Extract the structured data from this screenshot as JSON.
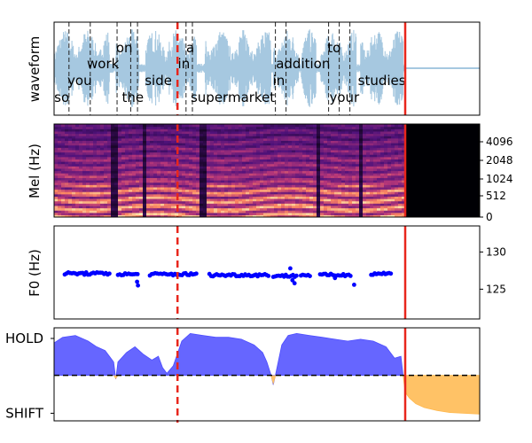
{
  "chart_data": [
    {
      "type": "area",
      "panel": "waveform",
      "ylabel": "waveform",
      "xlim": [
        0,
        1
      ],
      "audio_end": 0.825,
      "marker": 0.29,
      "word_boundaries": [
        0.035,
        0.085,
        0.148,
        0.18,
        0.196,
        0.31,
        0.325,
        0.52,
        0.545,
        0.645,
        0.67,
        0.695
      ],
      "waveform_color": "#a6c8e0",
      "words": [
        {
          "text": "so",
          "x": 0.018,
          "row": "bottom"
        },
        {
          "text": "you",
          "x": 0.06,
          "row": "middle"
        },
        {
          "text": "work",
          "x": 0.115,
          "row": "upper"
        },
        {
          "text": "on",
          "x": 0.165,
          "row": "top"
        },
        {
          "text": "the",
          "x": 0.185,
          "row": "bottom"
        },
        {
          "text": "side",
          "x": 0.245,
          "row": "middle"
        },
        {
          "text": "in",
          "x": 0.305,
          "row": "upper"
        },
        {
          "text": "a",
          "x": 0.32,
          "row": "top"
        },
        {
          "text": "supermarket",
          "x": 0.42,
          "row": "bottom"
        },
        {
          "text": "in",
          "x": 0.528,
          "row": "middle"
        },
        {
          "text": "addition",
          "x": 0.585,
          "row": "upper"
        },
        {
          "text": "to",
          "x": 0.658,
          "row": "top"
        },
        {
          "text": "your",
          "x": 0.682,
          "row": "bottom"
        },
        {
          "text": "studies",
          "x": 0.77,
          "row": "middle"
        }
      ]
    },
    {
      "type": "heatmap",
      "panel": "mel",
      "ylabel": "Mel (Hz)",
      "yticks": [
        "0",
        "512",
        "1024",
        "2048",
        "4096"
      ],
      "audio_end": 0.825,
      "marker": 0.29,
      "colormap": "magma"
    },
    {
      "type": "scatter",
      "panel": "f0",
      "ylabel": "F0 (Hz)",
      "yticks": [
        125,
        130
      ],
      "ylim": [
        121,
        133.5
      ],
      "marker": 0.29,
      "audio_end": 0.825,
      "point_color": "#0000ff",
      "segments": [
        {
          "x0": 0.025,
          "x1": 0.13,
          "y": 127.1
        },
        {
          "x0": 0.15,
          "x1": 0.2,
          "y": 127.0
        },
        {
          "x0": 0.225,
          "x1": 0.335,
          "y": 127.0
        },
        {
          "x0": 0.365,
          "x1": 0.505,
          "y": 126.9
        },
        {
          "x0": 0.515,
          "x1": 0.57,
          "y": 126.8
        },
        {
          "x0": 0.58,
          "x1": 0.605,
          "y": 126.9
        },
        {
          "x0": 0.625,
          "x1": 0.7,
          "y": 126.9
        },
        {
          "x0": 0.745,
          "x1": 0.795,
          "y": 127.1
        }
      ],
      "outliers": [
        {
          "x": 0.195,
          "y": 126.0
        },
        {
          "x": 0.197,
          "y": 125.5
        },
        {
          "x": 0.555,
          "y": 127.8
        },
        {
          "x": 0.56,
          "y": 126.2
        },
        {
          "x": 0.565,
          "y": 125.8
        },
        {
          "x": 0.705,
          "y": 125.6
        },
        {
          "x": 0.66,
          "y": 126.5
        }
      ]
    },
    {
      "type": "area",
      "panel": "turn",
      "ytick_labels": [
        "HOLD",
        "SHIFT"
      ],
      "ylim": [
        -1.2,
        1.25
      ],
      "marker": 0.29,
      "audio_end": 0.825,
      "hold_color": "#6666ff",
      "shift_color": "#ffc266",
      "hold": [
        [
          0,
          0.85
        ],
        [
          0.02,
          1.0
        ],
        [
          0.05,
          1.05
        ],
        [
          0.08,
          0.9
        ],
        [
          0.1,
          0.75
        ],
        [
          0.12,
          0.65
        ],
        [
          0.14,
          0.35
        ],
        [
          0.145,
          -0.1
        ],
        [
          0.15,
          0.35
        ],
        [
          0.17,
          0.6
        ],
        [
          0.19,
          0.75
        ],
        [
          0.21,
          0.55
        ],
        [
          0.23,
          0.4
        ],
        [
          0.245,
          0.5
        ],
        [
          0.255,
          0.2
        ],
        [
          0.265,
          0.05
        ],
        [
          0.28,
          0.25
        ],
        [
          0.3,
          0.9
        ],
        [
          0.32,
          1.1
        ],
        [
          0.35,
          1.05
        ],
        [
          0.38,
          1.0
        ],
        [
          0.41,
          1.0
        ],
        [
          0.44,
          0.95
        ],
        [
          0.47,
          0.8
        ],
        [
          0.49,
          0.6
        ],
        [
          0.5,
          0.35
        ],
        [
          0.51,
          0.0
        ],
        [
          0.515,
          -0.25
        ],
        [
          0.52,
          0.0
        ],
        [
          0.535,
          0.8
        ],
        [
          0.55,
          1.05
        ],
        [
          0.57,
          1.1
        ],
        [
          0.6,
          1.05
        ],
        [
          0.63,
          1.0
        ],
        [
          0.66,
          0.95
        ],
        [
          0.69,
          0.9
        ],
        [
          0.72,
          0.95
        ],
        [
          0.75,
          0.9
        ],
        [
          0.78,
          0.75
        ],
        [
          0.8,
          0.45
        ],
        [
          0.815,
          0.5
        ],
        [
          0.82,
          0.0
        ]
      ],
      "shift": [
        [
          0.82,
          0.0
        ],
        [
          0.825,
          -0.45
        ],
        [
          0.835,
          -0.6
        ],
        [
          0.85,
          -0.75
        ],
        [
          0.87,
          -0.85
        ],
        [
          0.9,
          -0.93
        ],
        [
          0.93,
          -0.98
        ],
        [
          0.96,
          -1.0
        ],
        [
          1.0,
          -1.02
        ]
      ]
    }
  ]
}
